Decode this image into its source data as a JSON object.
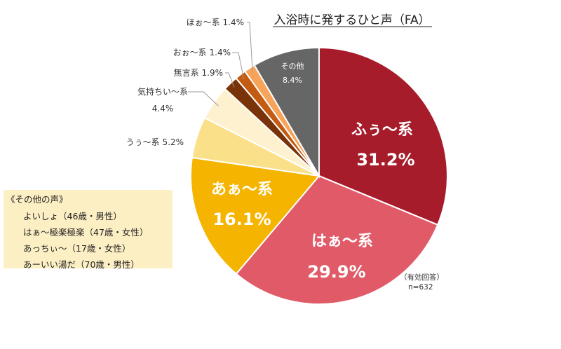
{
  "chart_data": {
    "type": "pie",
    "title": "入浴時に発するひと声（FA）",
    "slices": [
      {
        "name": "ふぅ〜系",
        "label": "ふぅ〜系",
        "value": 31.2,
        "display": "31.2%",
        "color": "#a61c2b"
      },
      {
        "name": "はぁ〜系",
        "label": "はぁ〜系",
        "value": 29.9,
        "display": "29.9%",
        "color": "#e05a68"
      },
      {
        "name": "あぁ〜系",
        "label": "あぁ〜系",
        "value": 16.1,
        "display": "16.1%",
        "color": "#f5b400"
      },
      {
        "name": "うぅ〜系",
        "label": "うぅ〜系",
        "value": 5.2,
        "display": "5.2%",
        "color": "#fbe08a"
      },
      {
        "name": "気持ちい〜系",
        "label": "気持ちい〜系",
        "value": 4.4,
        "display": "4.4%",
        "color": "#fdf1cf"
      },
      {
        "name": "無言系",
        "label": "無言系",
        "value": 1.9,
        "display": "1.9%",
        "color": "#7a3209"
      },
      {
        "name": "おぉ〜系",
        "label": "おぉ〜系",
        "value": 1.4,
        "display": "1.4%",
        "color": "#c35b12"
      },
      {
        "name": "ほぉ〜系",
        "label": "ほぉ〜系",
        "value": 1.4,
        "display": "1.4%",
        "color": "#f7a35a"
      },
      {
        "name": "その他",
        "label": "その他",
        "value": 8.4,
        "display": "8.4%",
        "color": "#666666"
      }
    ],
    "note": {
      "line1": "（有効回答）",
      "line2": "n=632"
    },
    "other_voices": {
      "title": "《その他の声》",
      "items": [
        "よいしょ（46歳・男性）",
        "はぁ〜極楽極楽（47歳・女性）",
        "あっちぃ〜（17歳・女性）",
        "あーいい湯だ（70歳・男性）"
      ]
    }
  },
  "colors": {
    "edge": "#ffffff",
    "box_fill": "#fdefc4",
    "leader": "#9a9a9a"
  }
}
